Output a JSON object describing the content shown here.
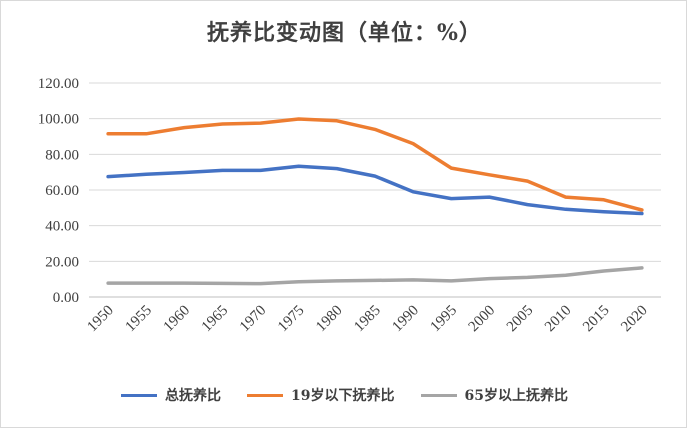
{
  "chart_data": {
    "type": "line",
    "title": "抚养比变动图（单位：%）",
    "categories": [
      "1950",
      "1955",
      "1960",
      "1965",
      "1970",
      "1975",
      "1980",
      "1985",
      "1990",
      "1995",
      "2000",
      "2005",
      "2010",
      "2015",
      "2020"
    ],
    "ylim": [
      0,
      120
    ],
    "yticks": [
      "0.00",
      "20.00",
      "40.00",
      "60.00",
      "80.00",
      "100.00",
      "120.00"
    ],
    "grid": "horizontal",
    "legend_position": "bottom",
    "series": [
      {
        "name": "总抚养比",
        "color": "#4472c4",
        "values": [
          67.5,
          68.8,
          69.8,
          71.0,
          71.0,
          73.3,
          72.0,
          67.8,
          59.0,
          55.2,
          56.0,
          51.8,
          49.2,
          47.8,
          46.8
        ]
      },
      {
        "name": "19岁以下抚养比",
        "color": "#ed7d31",
        "values": [
          91.5,
          91.5,
          95.0,
          97.0,
          97.5,
          99.8,
          98.8,
          94.0,
          86.0,
          72.3,
          68.5,
          65.0,
          56.0,
          54.5,
          48.8
        ]
      },
      {
        "name": "65岁以上抚养比",
        "color": "#a5a5a5",
        "values": [
          7.8,
          7.8,
          7.8,
          7.6,
          7.5,
          8.6,
          9.0,
          9.3,
          9.6,
          9.0,
          10.3,
          11.0,
          12.2,
          14.6,
          16.3
        ]
      }
    ]
  }
}
